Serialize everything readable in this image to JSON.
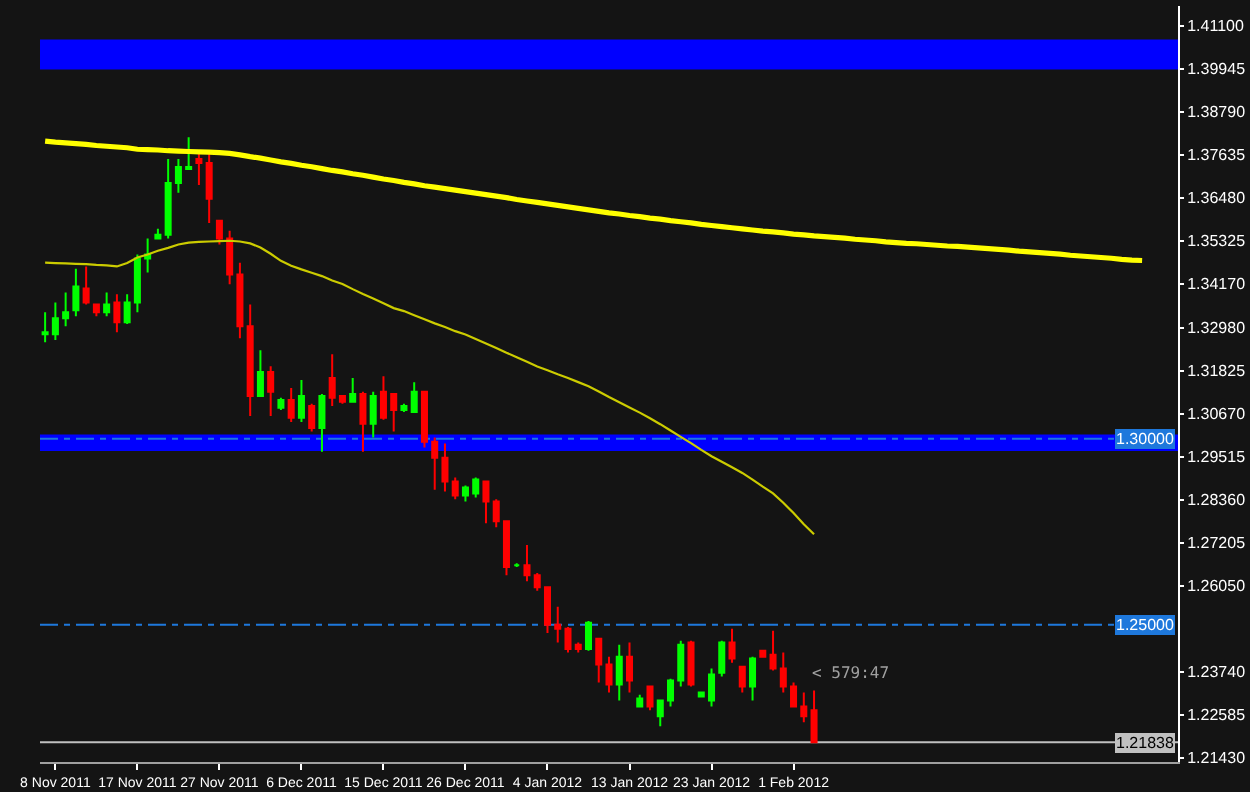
{
  "chart_data": {
    "type": "candlestick",
    "categories": [
      null,
      "8 Nov 2011",
      null,
      null,
      null,
      null,
      null,
      null,
      null,
      "17 Nov 2011",
      null,
      null,
      null,
      null,
      null,
      null,
      null,
      "27 Nov 2011",
      null,
      null,
      null,
      null,
      null,
      null,
      null,
      "6 Dec 2011",
      null,
      null,
      null,
      null,
      null,
      null,
      null,
      "15 Dec 2011",
      null,
      null,
      null,
      null,
      null,
      null,
      null,
      "26 Dec 2011",
      null,
      null,
      null,
      null,
      null,
      null,
      null,
      "4 Jan 2012",
      null,
      null,
      null,
      null,
      null,
      null,
      null,
      "13 Jan 2012",
      null,
      null,
      null,
      null,
      null,
      null,
      null,
      "23 Jan 2012",
      null,
      null,
      null,
      null,
      null,
      null,
      null,
      "1 Feb 2012",
      null,
      null,
      null,
      null,
      null,
      null,
      null,
      null,
      null,
      null,
      null,
      null,
      null,
      null,
      null,
      null,
      null,
      null,
      null,
      null,
      null,
      null,
      null,
      null,
      null,
      null,
      null,
      null,
      null,
      null,
      null,
      null,
      null,
      null,
      null,
      null,
      null
    ],
    "ohlc": [
      [
        1.3281,
        1.334,
        1.3259,
        1.3286
      ],
      [
        1.3281,
        1.3366,
        1.3265,
        1.3324
      ],
      [
        1.3324,
        1.3393,
        1.3302,
        1.334
      ],
      [
        1.3345,
        1.3457,
        1.3329,
        1.3409
      ],
      [
        1.3404,
        1.3463,
        1.3361,
        1.3366
      ],
      [
        1.3361,
        1.3361,
        1.3329,
        1.334
      ],
      [
        1.334,
        1.3393,
        1.3329,
        1.3361
      ],
      [
        1.3366,
        1.3388,
        1.3286,
        1.3313
      ],
      [
        1.3313,
        1.3388,
        1.3308,
        1.3366
      ],
      [
        1.3366,
        1.3495,
        1.334,
        1.3484
      ],
      [
        1.3484,
        1.3538,
        1.3447,
        1.3495
      ],
      [
        1.3538,
        1.3564,
        1.3538,
        1.3548
      ],
      [
        1.3548,
        1.3752,
        1.3538,
        1.3687
      ],
      [
        1.3687,
        1.3752,
        1.3661,
        1.373
      ],
      [
        1.3725,
        1.381,
        1.3725,
        1.373
      ],
      [
        1.3752,
        1.3773,
        1.3682,
        1.3741
      ],
      [
        1.3741,
        1.3768,
        1.358,
        1.3645
      ],
      [
        1.3586,
        1.3586,
        1.3522,
        1.3538
      ],
      [
        1.3538,
        1.3559,
        1.3415,
        1.3441
      ],
      [
        1.3441,
        1.3473,
        1.327,
        1.3302
      ],
      [
        1.3302,
        1.3361,
        1.3061,
        1.3115
      ],
      [
        1.3115,
        1.3238,
        1.3115,
        1.3179
      ],
      [
        1.3179,
        1.3195,
        1.3061,
        1.3126
      ],
      [
        1.3083,
        1.311,
        1.3077,
        1.3104
      ],
      [
        1.3104,
        1.3136,
        1.3045,
        1.3056
      ],
      [
        1.3056,
        1.3158,
        1.3045,
        1.3115
      ],
      [
        1.3088,
        1.3094,
        1.3019,
        1.3029
      ],
      [
        1.3029,
        1.312,
        1.2965,
        1.3115
      ],
      [
        1.3163,
        1.3227,
        1.3088,
        1.311
      ],
      [
        1.3115,
        1.3115,
        1.3094,
        1.3099
      ],
      [
        1.3099,
        1.3163,
        1.3099,
        1.312
      ],
      [
        1.312,
        1.3126,
        1.2965,
        1.304
      ],
      [
        1.304,
        1.3126,
        1.3003,
        1.3115
      ],
      [
        1.3126,
        1.3168,
        1.3051,
        1.3056
      ],
      [
        1.312,
        1.312,
        1.3019,
        1.3077
      ],
      [
        1.3077,
        1.3094,
        1.3072,
        1.3088
      ],
      [
        1.3072,
        1.3152,
        1.3072,
        1.3126
      ],
      [
        1.3126,
        1.3126,
        1.2976,
        1.2992
      ],
      [
        1.2992,
        1.3003,
        1.2863,
        1.2949
      ],
      [
        1.2949,
        1.2987,
        1.2858,
        1.2885
      ],
      [
        1.2885,
        1.2896,
        1.2837,
        1.2847
      ],
      [
        1.2847,
        1.2874,
        1.2831,
        1.2869
      ],
      [
        1.2853,
        1.2896,
        1.2842,
        1.289
      ],
      [
        1.2885,
        1.2885,
        1.2773,
        1.2831
      ],
      [
        1.2831,
        1.2837,
        1.2762,
        1.2778
      ],
      [
        1.2778,
        1.2778,
        1.2633,
        1.2655
      ],
      [
        1.266,
        1.2665,
        1.2655,
        1.266
      ],
      [
        1.266,
        1.2714,
        1.2617,
        1.2633
      ],
      [
        1.2633,
        1.2639,
        1.2591,
        1.2601
      ],
      [
        1.2601,
        1.2601,
        1.2478,
        1.25
      ],
      [
        1.25,
        1.2548,
        1.2452,
        1.2489
      ],
      [
        1.2489,
        1.2494,
        1.2425,
        1.2435
      ],
      [
        1.2446,
        1.2452,
        1.2425,
        1.2435
      ],
      [
        1.2435,
        1.251,
        1.243,
        1.2505
      ],
      [
        1.2462,
        1.2462,
        1.2345,
        1.2393
      ],
      [
        1.2393,
        1.2414,
        1.2318,
        1.2339
      ],
      [
        1.2339,
        1.2446,
        1.2296,
        1.2414
      ],
      [
        1.2414,
        1.2452,
        1.2318,
        1.235
      ],
      [
        1.228,
        1.2312,
        1.228,
        1.2302
      ],
      [
        1.2334,
        1.2334,
        1.227,
        1.228
      ],
      [
        1.2254,
        1.2296,
        1.2227,
        1.2296
      ],
      [
        1.2296,
        1.2355,
        1.228,
        1.235
      ],
      [
        1.235,
        1.2457,
        1.2334,
        1.2446
      ],
      [
        1.2452,
        1.2457,
        1.2334,
        1.2339
      ],
      [
        1.2307,
        1.2318,
        1.2307,
        1.2318
      ],
      [
        1.2296,
        1.2382,
        1.228,
        1.2366
      ],
      [
        1.2371,
        1.2457,
        1.2361,
        1.2452
      ],
      [
        1.2452,
        1.2489,
        1.2398,
        1.2409
      ],
      [
        1.2387,
        1.2387,
        1.2318,
        1.2334
      ],
      [
        1.2334,
        1.2414,
        1.2296,
        1.2409
      ],
      [
        1.243,
        1.243,
        1.2414,
        1.2414
      ],
      [
        1.2419,
        1.2484,
        1.2377,
        1.2382
      ],
      [
        1.2382,
        1.2425,
        1.2318,
        1.2334
      ],
      [
        1.2334,
        1.2345,
        1.228,
        1.228
      ],
      [
        1.228,
        1.2318,
        1.2238,
        1.2254
      ],
      [
        1.227,
        1.2323,
        1.2182,
        1.21838
      ],
      null,
      null,
      null,
      null,
      null,
      null,
      null,
      null,
      null,
      null,
      null,
      null,
      null,
      null,
      null,
      null,
      null,
      null,
      null,
      null,
      null,
      null,
      null,
      null,
      null,
      null,
      null,
      null,
      null,
      null,
      null,
      null,
      null,
      null,
      null
    ],
    "series": [
      {
        "type": "line",
        "color": "#ffff00",
        "values": [
          1.38,
          1.3797,
          1.3795,
          1.3793,
          1.3791,
          1.3788,
          1.3786,
          1.3784,
          1.3782,
          1.3778,
          1.3777,
          1.3776,
          1.3774,
          1.3773,
          1.3772,
          1.3771,
          1.377,
          1.3769,
          1.3767,
          1.3763,
          1.3758,
          1.3754,
          1.3749,
          1.3744,
          1.374,
          1.3735,
          1.3731,
          1.3726,
          1.3721,
          1.3717,
          1.3712,
          1.3708,
          1.3703,
          1.3698,
          1.3694,
          1.3689,
          1.3685,
          1.368,
          1.3676,
          1.3672,
          1.3668,
          1.3664,
          1.366,
          1.3656,
          1.3652,
          1.3648,
          1.3643,
          1.3639,
          1.3635,
          1.3631,
          1.3627,
          1.3623,
          1.3619,
          1.3615,
          1.3611,
          1.3607,
          1.3604,
          1.36,
          1.3597,
          1.3593,
          1.359,
          1.3586,
          1.3583,
          1.358,
          1.3576,
          1.3573,
          1.357,
          1.3567,
          1.3564,
          1.3561,
          1.3558,
          1.3556,
          1.3553,
          1.355,
          1.3548,
          1.3545,
          1.3543,
          1.3541,
          1.3539,
          1.3536,
          1.3534,
          1.3532,
          1.3529,
          1.3527,
          1.3525,
          1.3524,
          1.3522,
          1.352,
          1.3518,
          1.3517,
          1.3515,
          1.3513,
          1.3511,
          1.3509,
          1.3507,
          1.3504,
          1.3502,
          1.35,
          1.3498,
          1.3496,
          1.3493,
          1.3491,
          1.3489,
          1.3487,
          1.3485,
          1.3482,
          1.348,
          1.3479,
          null,
          null,
          null
        ]
      },
      {
        "type": "line",
        "color": "#cccc00",
        "values": [
          1.3473,
          1.3472,
          1.3471,
          1.347,
          1.3469,
          1.3467,
          1.3466,
          1.3463,
          1.3472,
          1.3487,
          1.3495,
          1.3505,
          1.3513,
          1.3522,
          1.3527,
          1.3529,
          1.353,
          1.3531,
          1.3532,
          1.353,
          1.3525,
          1.3514,
          1.3497,
          1.3478,
          1.3465,
          1.3455,
          1.3446,
          1.3437,
          1.3425,
          1.3416,
          1.3402,
          1.3389,
          1.3377,
          1.3364,
          1.3351,
          1.3343,
          1.3332,
          1.3321,
          1.331,
          1.33,
          1.3289,
          1.328,
          1.3268,
          1.3256,
          1.3244,
          1.3231,
          1.3219,
          1.3207,
          1.3194,
          1.3184,
          1.3173,
          1.3163,
          1.3152,
          1.3141,
          1.3127,
          1.3112,
          1.3098,
          1.3084,
          1.307,
          1.3055,
          1.3039,
          1.3022,
          1.3005,
          1.2988,
          1.297,
          1.2953,
          1.2938,
          1.2923,
          1.2908,
          1.289,
          1.2871,
          1.2853,
          1.2828,
          1.28,
          1.277,
          1.2743,
          null,
          null,
          null,
          null,
          null,
          null,
          null,
          null,
          null,
          null,
          null,
          null,
          null,
          null,
          null,
          null,
          null,
          null,
          null,
          null,
          null,
          null,
          null,
          null,
          null,
          null,
          null,
          null,
          null,
          null,
          null,
          null,
          null,
          null,
          null
        ]
      }
    ],
    "ylim": [
      1.2131,
      1.4163
    ],
    "yticks": [
      {
        "value": 1.411,
        "label": "1.41100"
      },
      1.39945,
      {
        "value": 1.3879,
        "label": "1.38790"
      },
      1.37635,
      {
        "value": 1.3648,
        "label": "1.36480"
      },
      1.35325,
      {
        "value": 1.3417,
        "label": "1.34170"
      },
      {
        "value": 1.3298,
        "label": "1.32980"
      },
      1.31825,
      {
        "value": 1.3067,
        "label": "1.30670"
      },
      1.29515,
      {
        "value": 1.2836,
        "label": "1.28360"
      },
      1.27205,
      {
        "value": 1.2605,
        "label": "1.26050"
      },
      {
        "value": 1.2374,
        "label": "1.23740"
      },
      1.22585,
      {
        "value": 1.2143,
        "label": "1.21430"
      }
    ],
    "bands": [
      {
        "axis": "y",
        "from": 1.3992,
        "to": 1.4073,
        "color": "#0000ff"
      },
      {
        "axis": "y",
        "from": 1.2967,
        "to": 1.3011,
        "color": "#0000ff"
      }
    ],
    "ref_lines": [
      {
        "axis": "y",
        "value": 1.3,
        "label": "1.30000",
        "color": "#1e78dc",
        "line_style": "dashed"
      },
      {
        "axis": "y",
        "value": 1.25,
        "label": "1.25000",
        "color": "#1e78dc",
        "line_style": "dashed"
      },
      {
        "axis": "y",
        "value": 1.21838,
        "label": "1.21838",
        "color": "#c0c0c0",
        "line_style": "solid"
      }
    ],
    "annotations": [
      "< 579:47"
    ]
  }
}
